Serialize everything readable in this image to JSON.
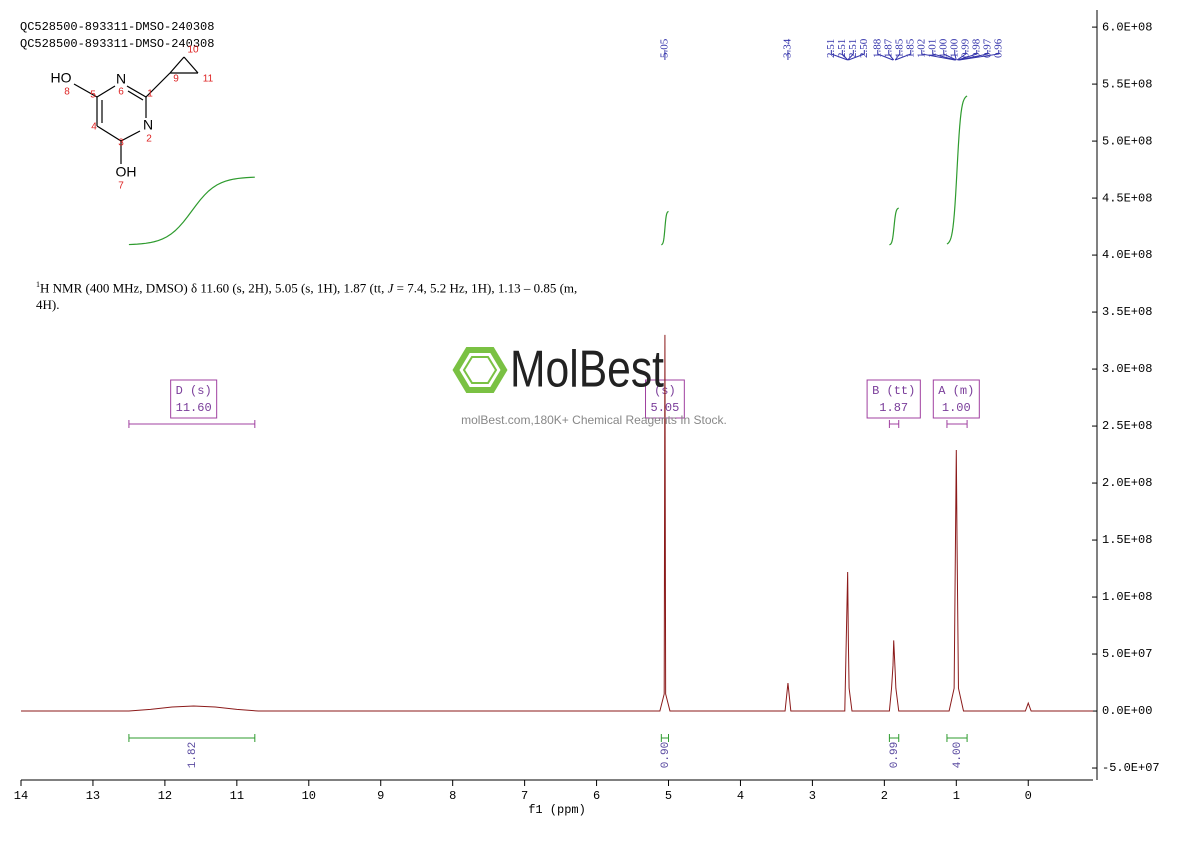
{
  "header": {
    "lines": [
      "QC528500-893311-DMSO-240308",
      "QC528500-893311-DMSO-240308"
    ]
  },
  "structure": {
    "atoms": [
      "HO",
      "8",
      "N",
      "6",
      "5",
      "1",
      "9",
      "10",
      "11",
      "4",
      "3",
      "N",
      "2",
      "OH",
      "7"
    ]
  },
  "description": {
    "parts": [
      "1",
      "H NMR (400 MHz, DMSO) δ 11.60 (s, 2H), 5.05 (s, 1H), 1.87 (tt, ",
      "J",
      " = 7.4, 5.2 Hz, 1H), 1.13 – 0.85 (m, 4H)."
    ]
  },
  "watermark": {
    "logo": "MolBest",
    "text": "molBest.com,180K+ Chemical Reagents In Stock."
  },
  "chart_data": {
    "type": "line",
    "x_label": "f1 (ppm)",
    "color": "#8b1a1a",
    "xlim": [
      14,
      -0.9
    ],
    "xticks": [
      14,
      13,
      12,
      11,
      10,
      9,
      8,
      7,
      6,
      5,
      4,
      3,
      2,
      1,
      0
    ],
    "ylim": [
      -60500000,
      615000000
    ],
    "yticks": [
      {
        "value": 600000000,
        "label": "6.0E+08"
      },
      {
        "value": 550000000,
        "label": "5.5E+08"
      },
      {
        "value": 500000000,
        "label": "5.0E+08"
      },
      {
        "value": 450000000,
        "label": "4.5E+08"
      },
      {
        "value": 400000000,
        "label": "4.0E+08"
      },
      {
        "value": 350000000,
        "label": "3.5E+08"
      },
      {
        "value": 300000000,
        "label": "3.0E+08"
      },
      {
        "value": 250000000,
        "label": "2.5E+08"
      },
      {
        "value": 200000000,
        "label": "2.0E+08"
      },
      {
        "value": 150000000,
        "label": "1.5E+08"
      },
      {
        "value": 100000000,
        "label": "1.0E+08"
      },
      {
        "value": 50000000,
        "label": "5.0E+07"
      },
      {
        "value": 0,
        "label": "0.0E+00"
      },
      {
        "value": -50000000,
        "label": "-5.0E+07"
      }
    ],
    "x": [
      14,
      12.5,
      12.2,
      11.9,
      11.6,
      11.3,
      11.0,
      10.7,
      5.12,
      5.06,
      5.05,
      5.04,
      4.98,
      3.38,
      3.34,
      3.3,
      2.55,
      2.51,
      2.5,
      2.49,
      2.45,
      1.93,
      1.9,
      1.88,
      1.87,
      1.85,
      1.84,
      1.8,
      1.1,
      1.03,
      1.01,
      1.0,
      0.99,
      0.97,
      0.9,
      0.04,
      0.0,
      -0.04,
      -0.9
    ],
    "values": [
      0,
      0,
      1500000,
      3500000,
      4400000,
      3500000,
      1500000,
      0,
      0,
      15000000,
      330000000,
      15000000,
      0,
      0,
      24500000,
      0,
      0,
      122000000,
      60000000,
      20000000,
      0,
      0,
      20000000,
      40000000,
      62000000,
      35000000,
      20000000,
      0,
      0,
      20000000,
      160000000,
      229000000,
      150000000,
      20000000,
      0,
      0,
      7000000,
      0,
      0
    ],
    "peaks": [
      5.05,
      3.34,
      2.51,
      2.51,
      2.51,
      {
        "value": 2.5,
        "label": "2.50"
      },
      1.88,
      1.87,
      1.85,
      1.85,
      1.02,
      1.01,
      {
        "value": 1,
        "label": "1.00"
      },
      {
        "value": 1,
        "label": "1.00"
      },
      0.99,
      0.98,
      0.97,
      0.96
    ],
    "integrals": [
      {
        "range": [
          12.5,
          10.75
        ],
        "value": 1.82
      },
      {
        "range": [
          5.1,
          5.0
        ],
        "value": 0.9,
        "label": "0.90"
      },
      {
        "range": [
          1.93,
          1.8
        ],
        "value": 0.99
      },
      {
        "range": [
          1.13,
          0.85
        ],
        "value": 4,
        "label": "4.00"
      }
    ],
    "multiplets": [
      {
        "name": "D (s)",
        "shift": {
          "value": 11.6,
          "label": "11.60"
        },
        "range": [
          12.5,
          10.75
        ]
      },
      {
        "name": "(s)",
        "shift": 5.05
      },
      {
        "name": "B (tt)",
        "shift": 1.87,
        "range": [
          1.93,
          1.8
        ]
      },
      {
        "name": "A (m)",
        "shift": {
          "value": 1,
          "label": "1.00"
        },
        "range": [
          1.13,
          0.85
        ]
      }
    ]
  }
}
